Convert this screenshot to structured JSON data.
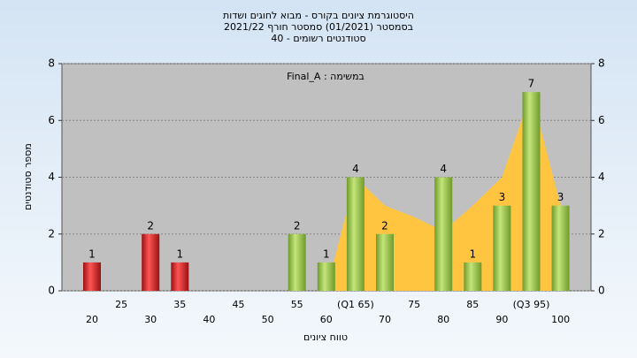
{
  "chart_data": {
    "type": "bar",
    "title": [
      "היסטוגרמת ציונים בקורס - מבוא לחוגים ושדות",
      "בסמסטר (01/2021) סמסטר חורף 2021/22",
      "סטודנטים רשומים - 40"
    ],
    "annotation": "במשימה : Final_A",
    "x_label": "טווח ציונים",
    "y_label": "מספר סטודנטים",
    "categories": [
      "20",
      "25",
      "30",
      "35",
      "40",
      "45",
      "50",
      "55",
      "60",
      "(Q1 65)",
      "70",
      "75",
      "80",
      "85",
      "90",
      "(Q3 95)",
      "100"
    ],
    "values": [
      1,
      null,
      2,
      1,
      null,
      null,
      null,
      2,
      1,
      4,
      2,
      null,
      4,
      1,
      3,
      7,
      3
    ],
    "colors": [
      "#dd2222",
      null,
      "#dd2222",
      "#dd2222",
      null,
      null,
      null,
      "#9acd4a",
      "#9acd4a",
      "#9acd4a",
      "#9acd4a",
      null,
      "#9acd4a",
      "#9acd4a",
      "#9acd4a",
      "#9acd4a",
      "#9acd4a"
    ],
    "overlay": {
      "color": "#ffc540",
      "values": [
        null,
        null,
        null,
        null,
        null,
        null,
        null,
        null,
        0,
        4,
        3,
        2.6,
        2.1,
        3,
        4,
        7,
        3
      ]
    },
    "ylim": [
      0,
      8
    ],
    "yticks": [
      0,
      2,
      4,
      6,
      8
    ],
    "y2lim": [
      0,
      8
    ],
    "y2ticks": [
      0,
      2,
      4,
      6,
      8
    ],
    "grid": true
  }
}
